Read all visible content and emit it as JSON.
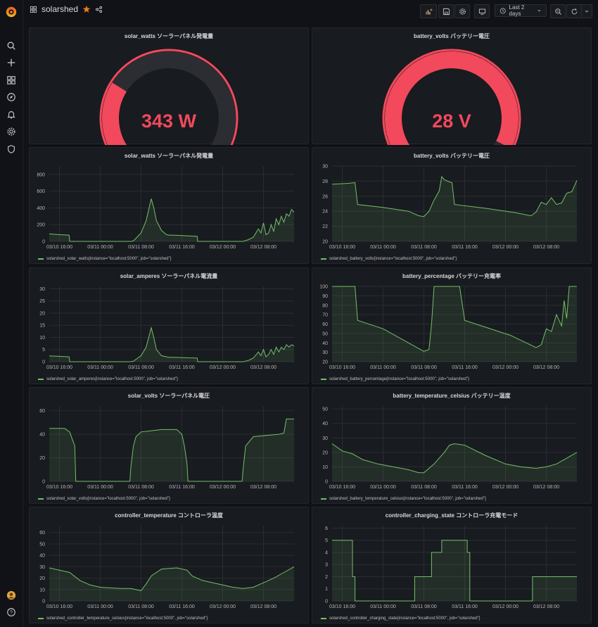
{
  "dashboard": {
    "title": "solarshed",
    "time_range": "Last 2 days"
  },
  "colors": {
    "green": "#73bf69",
    "red": "#f2495c",
    "gauge_bg": "#2c2d32",
    "grid": "#2a2c31",
    "text": "#b5b5b5"
  },
  "sidebar": {
    "icons": [
      "search-icon",
      "plus-icon",
      "dashboards-icon",
      "explore-icon",
      "alert-bell-icon",
      "gear-icon",
      "shield-icon"
    ]
  },
  "gauges": [
    {
      "title": "solar_watts ソーラーパネル発電量",
      "value_text": "343 W",
      "value": 343,
      "min": 0,
      "max": 1200,
      "threshold": 80
    },
    {
      "title": "battery_volts バッテリー電圧",
      "value_text": "28 V",
      "value": 28,
      "min": 0,
      "max": 30,
      "threshold": 0.8
    }
  ],
  "chart_data": [
    {
      "type": "area",
      "title": "solar_watts ソーラーパネル発電量",
      "legend": "solarshed_solar_watts{instance=\"localhost:5000\", job=\"solarshed\"}",
      "x_ticks": [
        "03/10 16:00",
        "03/11 00:00",
        "03/11 08:00",
        "03/11 16:00",
        "03/12 00:00",
        "03/12 08:00"
      ],
      "x_range": [
        0,
        48
      ],
      "y_ticks": [
        0,
        200,
        400,
        600,
        800
      ],
      "ylim": [
        0,
        900
      ],
      "x": [
        0,
        2,
        3.9,
        4,
        16,
        16.5,
        18,
        19,
        19.5,
        20,
        20.5,
        21,
        22,
        23,
        23.5,
        24,
        26,
        29,
        29.1,
        38,
        39,
        40,
        41,
        41.5,
        42,
        42.5,
        43,
        43.5,
        44,
        44.5,
        45,
        45.5,
        46,
        46.5,
        47,
        47.5,
        48
      ],
      "y": [
        90,
        80,
        75,
        0,
        0,
        5,
        100,
        250,
        380,
        510,
        400,
        250,
        130,
        80,
        75,
        75,
        70,
        60,
        0,
        0,
        20,
        50,
        150,
        100,
        220,
        80,
        100,
        200,
        120,
        270,
        200,
        300,
        230,
        330,
        300,
        380,
        350
      ]
    },
    {
      "type": "area",
      "title": "battery_volts バッテリー電圧",
      "legend": "solarshed_battery_volts{instance=\"localhost:5000\", job=\"solarshed\"}",
      "x_ticks": [
        "03/10 16:00",
        "03/11 00:00",
        "03/11 08:00",
        "03/11 16:00",
        "03/12 00:00",
        "03/12 08:00"
      ],
      "x_range": [
        0,
        48
      ],
      "y_ticks": [
        20,
        22,
        24,
        26,
        28,
        30
      ],
      "ylim": [
        20,
        30
      ],
      "x": [
        0,
        3,
        4.5,
        5,
        10,
        15,
        16,
        17,
        18,
        19,
        20,
        21,
        21.5,
        22,
        23,
        23.5,
        24,
        30,
        36,
        39,
        40,
        41,
        42,
        43,
        44,
        45,
        46,
        47,
        48
      ],
      "y": [
        27.6,
        27.7,
        27.8,
        24.9,
        24.5,
        24,
        23.7,
        23.4,
        23.3,
        24,
        25.5,
        26.7,
        28.6,
        28.2,
        27.9,
        27.8,
        24.9,
        24.4,
        23.8,
        23.4,
        23.9,
        25.2,
        24.9,
        25.8,
        24.9,
        25.1,
        26.4,
        26.6,
        28.1
      ]
    },
    {
      "type": "area",
      "title": "solar_amperes ソーラーパネル電流量",
      "legend": "solarshed_solar_amperes{instance=\"localhost:5000\", job=\"solarshed\"}",
      "x_ticks": [
        "03/10 16:00",
        "03/11 00:00",
        "03/11 08:00",
        "03/11 16:00",
        "03/12 00:00",
        "03/12 08:00"
      ],
      "x_range": [
        0,
        48
      ],
      "y_ticks": [
        0,
        5,
        10,
        15,
        20,
        25,
        30
      ],
      "ylim": [
        0,
        31
      ],
      "x": [
        0,
        2,
        3.9,
        4,
        16,
        16.5,
        18,
        19,
        19.5,
        20,
        20.5,
        21,
        22,
        23,
        23.5,
        24,
        26,
        29,
        29.1,
        38,
        39,
        40,
        41,
        41.5,
        42,
        42.5,
        43,
        43.5,
        44,
        44.5,
        45,
        45.5,
        46,
        46.5,
        47,
        47.5,
        48
      ],
      "y": [
        2.4,
        2.2,
        2,
        0,
        0,
        0.2,
        2.5,
        6,
        10,
        14,
        10,
        5,
        2.5,
        2,
        1.8,
        1.8,
        1.7,
        1.5,
        0,
        0,
        0.5,
        1.5,
        4,
        2.5,
        5,
        2,
        3,
        5,
        3,
        6,
        4,
        6,
        5,
        7,
        6,
        7,
        6.5
      ]
    },
    {
      "type": "area",
      "title": "battery_percentage バッテリー充電率",
      "legend": "solarshed_battery_percentage{instance=\"localhost:5000\", job=\"solarshed\"}",
      "x_ticks": [
        "03/10 16:00",
        "03/11 00:00",
        "03/11 08:00",
        "03/11 16:00",
        "03/12 00:00",
        "03/12 08:00"
      ],
      "x_range": [
        0,
        48
      ],
      "y_ticks": [
        20,
        30,
        40,
        50,
        60,
        70,
        80,
        90,
        100
      ],
      "ylim": [
        20,
        100
      ],
      "x": [
        0,
        4.5,
        5,
        10,
        17,
        18,
        19,
        19.5,
        20,
        25,
        26,
        35,
        40,
        41,
        42,
        43,
        44,
        45,
        45.5,
        46,
        46.5,
        47,
        48
      ],
      "y": [
        100,
        100,
        64,
        55,
        34,
        31,
        33,
        60,
        100,
        100,
        64,
        48,
        35,
        38,
        55,
        52,
        70,
        58,
        85,
        66,
        100,
        100,
        100
      ]
    },
    {
      "type": "area",
      "title": "solar_volts ソーラーパネル電圧",
      "legend": "solarshed_solar_volts{instance=\"localhost:5000\", job=\"solarshed\"}",
      "x_ticks": [
        "03/10 16:00",
        "03/11 00:00",
        "03/11 08:00",
        "03/11 16:00",
        "03/12 00:00",
        "03/12 08:00"
      ],
      "x_range": [
        0,
        48
      ],
      "y_ticks": [
        0,
        20,
        40,
        60
      ],
      "ylim": [
        0,
        64
      ],
      "x": [
        0,
        3,
        4,
        5,
        5.2,
        15.8,
        16,
        16.5,
        17,
        18,
        20,
        22,
        25,
        26,
        26.5,
        27,
        27.2,
        37.8,
        38,
        38.5,
        40,
        45,
        46,
        46.5,
        48
      ],
      "y": [
        45,
        45,
        42,
        30,
        0,
        0,
        12,
        30,
        38,
        42,
        43,
        44,
        44,
        40,
        30,
        15,
        0,
        0,
        10,
        30,
        38,
        40,
        41,
        53,
        53
      ]
    },
    {
      "type": "area",
      "title": "battery_temperature_celsius バッテリー温度",
      "legend": "solarshed_battery_temperature_celsius{instance=\"localhost:5000\", job=\"solarshed\"}",
      "x_ticks": [
        "03/10 16:00",
        "03/11 00:00",
        "03/11 08:00",
        "03/11 16:00",
        "03/12 00:00",
        "03/12 08:00"
      ],
      "x_range": [
        0,
        48
      ],
      "y_ticks": [
        0,
        10,
        20,
        30,
        40,
        50
      ],
      "ylim": [
        0,
        52
      ],
      "x": [
        0,
        2,
        4,
        6,
        9,
        12,
        15,
        17,
        18,
        20,
        22,
        23,
        24,
        26,
        30,
        34,
        37,
        40,
        42,
        44,
        46,
        48
      ],
      "y": [
        26,
        21,
        19,
        15,
        12,
        10,
        8,
        6,
        6,
        12,
        20,
        25,
        26,
        25,
        18,
        12,
        10,
        9,
        10,
        12,
        16,
        20
      ]
    },
    {
      "type": "area",
      "title": "controller_temperature コントローラ温度",
      "legend": "solarshed_controller_temperature_celsius{instance=\"localhost:5000\", job=\"solarshed\"}",
      "x_ticks": [
        "03/10 16:00",
        "03/11 00:00",
        "03/11 08:00",
        "03/11 16:00",
        "03/12 00:00",
        "03/12 08:00"
      ],
      "x_range": [
        0,
        48
      ],
      "y_ticks": [
        0,
        10,
        20,
        30,
        40,
        50,
        60
      ],
      "ylim": [
        0,
        66
      ],
      "x": [
        0,
        2,
        4,
        6,
        8,
        10,
        14,
        16,
        18,
        19,
        20,
        22,
        25,
        27,
        28,
        30,
        34,
        36,
        38,
        40,
        42,
        44,
        46,
        48
      ],
      "y": [
        29,
        27,
        25,
        18,
        14,
        12,
        11,
        11,
        9,
        15,
        22,
        28,
        29,
        27,
        22,
        18,
        14,
        12,
        11,
        12,
        16,
        20,
        25,
        30
      ]
    },
    {
      "type": "line",
      "title": "controller_charging_state コントローラ充電モード",
      "legend": "solarshed_controller_charging_state{instance=\"localhost:5000\", job=\"solarshed\"}",
      "x_ticks": [
        "03/10 16:00",
        "03/11 00:00",
        "03/11 08:00",
        "03/11 16:00",
        "03/12 00:00",
        "03/12 08:00"
      ],
      "x_range": [
        0,
        48
      ],
      "y_ticks": [
        0,
        1,
        2,
        3,
        4,
        5,
        6
      ],
      "ylim": [
        0,
        6.2
      ],
      "steps": [
        [
          0,
          5
        ],
        [
          4,
          2
        ],
        [
          4.5,
          0
        ],
        [
          16,
          0
        ],
        [
          16.2,
          2
        ],
        [
          19,
          2
        ],
        [
          19.5,
          4
        ],
        [
          21,
          4
        ],
        [
          21.5,
          5
        ],
        [
          26,
          5
        ],
        [
          26.5,
          4
        ],
        [
          27,
          0
        ],
        [
          39,
          0
        ],
        [
          39.3,
          2
        ],
        [
          48,
          2
        ]
      ]
    }
  ]
}
